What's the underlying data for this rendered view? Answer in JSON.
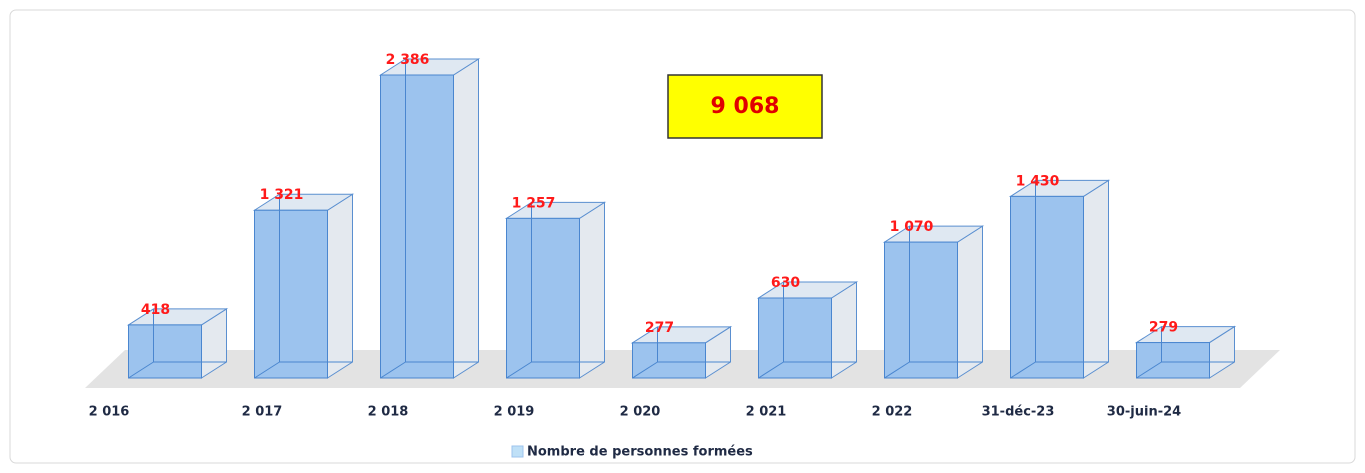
{
  "chart_data": {
    "type": "bar3d",
    "categories": [
      "2 016",
      "2 017",
      "2 018",
      "2 019",
      "2 020",
      "2 021",
      "2 022",
      "31-déc-23",
      "30-juin-24"
    ],
    "values": [
      418,
      1321,
      2386,
      1257,
      277,
      630,
      1070,
      1430,
      279
    ],
    "value_labels": [
      "418",
      "1 321",
      "2 386",
      "1 257",
      "277",
      "630",
      "1 070",
      "1 430",
      "279"
    ],
    "color": "#9cc3ee",
    "legend": "Nombre de personnes formées",
    "annotation": "9 068"
  }
}
